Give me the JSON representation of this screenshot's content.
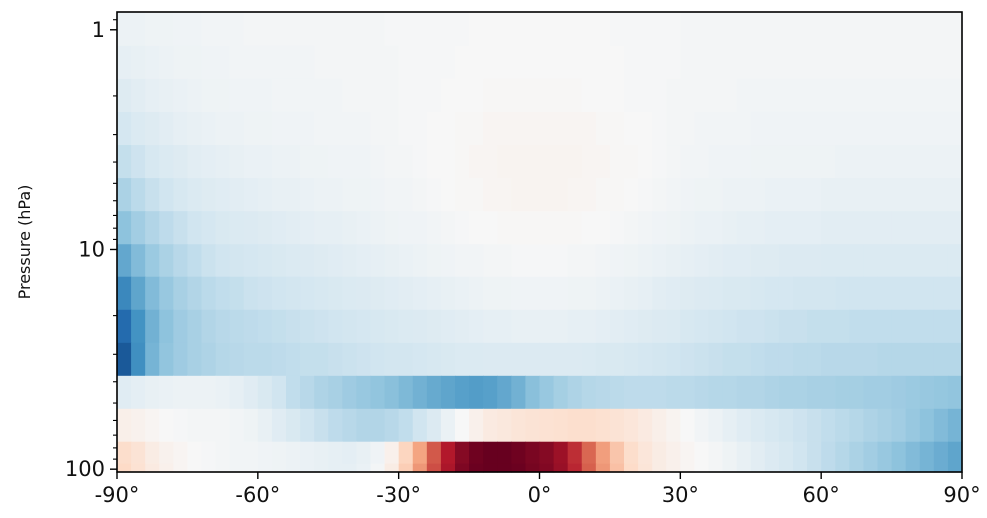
{
  "chart_data": {
    "type": "heatmap",
    "title": "",
    "xlabel": "",
    "ylabel": "Pressure (hPa)",
    "x_axis": {
      "min": -90,
      "max": 90,
      "ticks": [
        -90,
        -60,
        -30,
        0,
        30,
        60,
        90
      ],
      "tick_labels": [
        "-90°",
        "-60°",
        "-30°",
        "0°",
        "30°",
        "60°",
        "90°"
      ]
    },
    "y_axis": {
      "scale": "log",
      "inverted": true,
      "min": 0.83,
      "max": 103,
      "ticks": [
        1,
        10,
        100
      ],
      "tick_labels": [
        "1",
        "10",
        "100"
      ]
    },
    "colormap": "RdBu_r",
    "value_range": [
      -1,
      1
    ],
    "grid": false,
    "note_values": "Normalized anomaly values in [-1,1] read from the color scale",
    "latitudes": [
      -88.5,
      -85.5,
      -82.5,
      -79.5,
      -76.5,
      -73.5,
      -70.5,
      -67.5,
      -64.5,
      -61.5,
      -58.5,
      -55.5,
      -52.5,
      -49.5,
      -46.5,
      -43.5,
      -40.5,
      -37.5,
      -34.5,
      -31.5,
      -28.5,
      -25.5,
      -22.5,
      -19.5,
      -16.5,
      -13.5,
      -10.5,
      -7.5,
      -4.5,
      -1.5,
      1.5,
      4.5,
      7.5,
      10.5,
      13.5,
      16.5,
      19.5,
      22.5,
      25.5,
      28.5,
      31.5,
      34.5,
      37.5,
      40.5,
      43.5,
      46.5,
      49.5,
      52.5,
      55.5,
      58.5,
      61.5,
      64.5,
      67.5,
      70.5,
      73.5,
      76.5,
      79.5,
      82.5,
      85.5,
      88.5
    ],
    "pressure_levels": [
      1.0,
      1.4,
      2.0,
      2.8,
      4.0,
      5.6,
      8.0,
      11.2,
      15.8,
      22.4,
      31.6,
      44.7,
      63.1,
      89.1,
      100.0
    ],
    "values": [
      [
        -0.06,
        -0.06,
        -0.05,
        -0.05,
        -0.04,
        -0.04,
        -0.03,
        -0.03,
        -0.03,
        -0.02,
        -0.02,
        -0.02,
        -0.02,
        -0.02,
        -0.02,
        -0.02,
        -0.02,
        -0.02,
        -0.02,
        -0.01,
        -0.01,
        -0.01,
        -0.01,
        -0.01,
        -0.01,
        0.0,
        0.0,
        0.0,
        0.0,
        0.0,
        0.0,
        0.0,
        0.0,
        0.0,
        0.0,
        -0.01,
        -0.01,
        -0.01,
        -0.01,
        -0.01,
        -0.02,
        -0.02,
        -0.02,
        -0.02,
        -0.02,
        -0.02,
        -0.02,
        -0.02,
        -0.02,
        -0.02,
        -0.02,
        -0.02,
        -0.02,
        -0.02,
        -0.02,
        -0.02,
        -0.02,
        -0.02,
        -0.02,
        -0.02
      ],
      [
        -0.09,
        -0.08,
        -0.07,
        -0.06,
        -0.05,
        -0.05,
        -0.04,
        -0.04,
        -0.03,
        -0.03,
        -0.03,
        -0.03,
        -0.03,
        -0.03,
        -0.02,
        -0.02,
        -0.02,
        -0.02,
        -0.02,
        -0.02,
        -0.01,
        -0.01,
        -0.01,
        -0.01,
        0.0,
        0.0,
        0.0,
        0.0,
        0.0,
        0.0,
        0.0,
        0.0,
        0.0,
        0.0,
        0.0,
        0.0,
        -0.01,
        -0.01,
        -0.01,
        -0.01,
        -0.02,
        -0.02,
        -0.02,
        -0.02,
        -0.02,
        -0.02,
        -0.02,
        -0.02,
        -0.02,
        -0.02,
        -0.02,
        -0.02,
        -0.02,
        -0.02,
        -0.02,
        -0.02,
        -0.02,
        -0.02,
        -0.02,
        -0.02
      ],
      [
        -0.13,
        -0.11,
        -0.09,
        -0.08,
        -0.07,
        -0.06,
        -0.05,
        -0.05,
        -0.04,
        -0.04,
        -0.04,
        -0.03,
        -0.03,
        -0.03,
        -0.03,
        -0.03,
        -0.02,
        -0.02,
        -0.02,
        -0.02,
        -0.01,
        -0.01,
        -0.01,
        0.0,
        0.0,
        0.0,
        0.01,
        0.01,
        0.01,
        0.01,
        0.01,
        0.01,
        0.01,
        0.0,
        0.0,
        0.0,
        -0.01,
        -0.01,
        -0.01,
        -0.02,
        -0.02,
        -0.02,
        -0.02,
        -0.02,
        -0.03,
        -0.03,
        -0.03,
        -0.03,
        -0.03,
        -0.03,
        -0.03,
        -0.03,
        -0.03,
        -0.03,
        -0.03,
        -0.03,
        -0.03,
        -0.03,
        -0.03,
        -0.03
      ],
      [
        -0.18,
        -0.15,
        -0.13,
        -0.11,
        -0.09,
        -0.08,
        -0.07,
        -0.06,
        -0.06,
        -0.05,
        -0.05,
        -0.04,
        -0.04,
        -0.04,
        -0.03,
        -0.03,
        -0.03,
        -0.03,
        -0.02,
        -0.02,
        -0.01,
        -0.01,
        0.0,
        0.0,
        0.01,
        0.01,
        0.02,
        0.02,
        0.02,
        0.02,
        0.02,
        0.02,
        0.02,
        0.02,
        0.01,
        0.01,
        0.0,
        0.0,
        -0.01,
        -0.02,
        -0.02,
        -0.03,
        -0.03,
        -0.03,
        -0.03,
        -0.04,
        -0.04,
        -0.04,
        -0.04,
        -0.04,
        -0.04,
        -0.04,
        -0.04,
        -0.04,
        -0.04,
        -0.04,
        -0.04,
        -0.04,
        -0.04,
        -0.04
      ],
      [
        -0.24,
        -0.21,
        -0.17,
        -0.15,
        -0.13,
        -0.11,
        -0.1,
        -0.09,
        -0.08,
        -0.07,
        -0.07,
        -0.06,
        -0.06,
        -0.05,
        -0.05,
        -0.04,
        -0.04,
        -0.04,
        -0.03,
        -0.02,
        -0.02,
        -0.01,
        0.0,
        0.0,
        0.01,
        0.02,
        0.02,
        0.03,
        0.03,
        0.03,
        0.03,
        0.03,
        0.03,
        0.02,
        0.02,
        0.01,
        0.01,
        0.0,
        -0.01,
        -0.02,
        -0.03,
        -0.03,
        -0.04,
        -0.04,
        -0.04,
        -0.05,
        -0.05,
        -0.05,
        -0.05,
        -0.05,
        -0.05,
        -0.06,
        -0.06,
        -0.06,
        -0.06,
        -0.06,
        -0.06,
        -0.06,
        -0.06,
        -0.06
      ],
      [
        -0.32,
        -0.27,
        -0.23,
        -0.2,
        -0.17,
        -0.15,
        -0.13,
        -0.12,
        -0.11,
        -0.1,
        -0.09,
        -0.08,
        -0.08,
        -0.07,
        -0.06,
        -0.06,
        -0.05,
        -0.05,
        -0.04,
        -0.03,
        -0.03,
        -0.02,
        -0.01,
        0.0,
        0.01,
        0.01,
        0.02,
        0.02,
        0.03,
        0.03,
        0.03,
        0.03,
        0.02,
        0.02,
        0.01,
        0.01,
        0.0,
        -0.01,
        -0.02,
        -0.03,
        -0.04,
        -0.05,
        -0.05,
        -0.06,
        -0.06,
        -0.06,
        -0.07,
        -0.07,
        -0.07,
        -0.07,
        -0.08,
        -0.08,
        -0.08,
        -0.08,
        -0.08,
        -0.08,
        -0.08,
        -0.08,
        -0.08,
        -0.08
      ],
      [
        -0.41,
        -0.35,
        -0.3,
        -0.26,
        -0.23,
        -0.2,
        -0.18,
        -0.16,
        -0.15,
        -0.14,
        -0.13,
        -0.12,
        -0.11,
        -0.1,
        -0.09,
        -0.09,
        -0.08,
        -0.07,
        -0.06,
        -0.05,
        -0.04,
        -0.04,
        -0.03,
        -0.02,
        -0.01,
        0.0,
        0.0,
        0.01,
        0.01,
        0.01,
        0.01,
        0.01,
        0.01,
        0.0,
        0.0,
        -0.01,
        -0.02,
        -0.03,
        -0.04,
        -0.05,
        -0.06,
        -0.07,
        -0.07,
        -0.08,
        -0.09,
        -0.09,
        -0.1,
        -0.1,
        -0.1,
        -0.1,
        -0.11,
        -0.11,
        -0.11,
        -0.11,
        -0.11,
        -0.11,
        -0.11,
        -0.11,
        -0.11,
        -0.11
      ],
      [
        -0.52,
        -0.44,
        -0.37,
        -0.32,
        -0.28,
        -0.25,
        -0.22,
        -0.2,
        -0.19,
        -0.18,
        -0.17,
        -0.16,
        -0.15,
        -0.14,
        -0.13,
        -0.12,
        -0.11,
        -0.1,
        -0.09,
        -0.08,
        -0.07,
        -0.06,
        -0.05,
        -0.04,
        -0.03,
        -0.03,
        -0.02,
        -0.02,
        -0.01,
        -0.01,
        -0.01,
        -0.01,
        -0.02,
        -0.02,
        -0.03,
        -0.04,
        -0.05,
        -0.06,
        -0.07,
        -0.08,
        -0.09,
        -0.1,
        -0.11,
        -0.12,
        -0.12,
        -0.13,
        -0.13,
        -0.14,
        -0.14,
        -0.14,
        -0.15,
        -0.15,
        -0.15,
        -0.15,
        -0.15,
        -0.15,
        -0.15,
        -0.15,
        -0.15,
        -0.15
      ],
      [
        -0.65,
        -0.53,
        -0.44,
        -0.38,
        -0.33,
        -0.3,
        -0.27,
        -0.25,
        -0.24,
        -0.22,
        -0.21,
        -0.2,
        -0.19,
        -0.18,
        -0.17,
        -0.16,
        -0.15,
        -0.14,
        -0.13,
        -0.12,
        -0.11,
        -0.1,
        -0.09,
        -0.08,
        -0.07,
        -0.06,
        -0.05,
        -0.05,
        -0.04,
        -0.04,
        -0.04,
        -0.04,
        -0.05,
        -0.05,
        -0.06,
        -0.07,
        -0.08,
        -0.09,
        -0.11,
        -0.12,
        -0.13,
        -0.14,
        -0.15,
        -0.16,
        -0.16,
        -0.17,
        -0.18,
        -0.18,
        -0.19,
        -0.19,
        -0.19,
        -0.2,
        -0.2,
        -0.2,
        -0.2,
        -0.2,
        -0.2,
        -0.2,
        -0.2,
        -0.2
      ],
      [
        -0.78,
        -0.6,
        -0.48,
        -0.41,
        -0.36,
        -0.33,
        -0.3,
        -0.28,
        -0.27,
        -0.26,
        -0.25,
        -0.24,
        -0.23,
        -0.22,
        -0.21,
        -0.2,
        -0.19,
        -0.18,
        -0.17,
        -0.16,
        -0.15,
        -0.14,
        -0.13,
        -0.12,
        -0.11,
        -0.1,
        -0.09,
        -0.09,
        -0.08,
        -0.08,
        -0.08,
        -0.08,
        -0.09,
        -0.09,
        -0.1,
        -0.11,
        -0.12,
        -0.13,
        -0.14,
        -0.15,
        -0.17,
        -0.18,
        -0.19,
        -0.2,
        -0.21,
        -0.21,
        -0.22,
        -0.23,
        -0.23,
        -0.24,
        -0.24,
        -0.24,
        -0.25,
        -0.25,
        -0.25,
        -0.25,
        -0.25,
        -0.25,
        -0.25,
        -0.25
      ],
      [
        -0.85,
        -0.62,
        -0.47,
        -0.4,
        -0.36,
        -0.33,
        -0.31,
        -0.29,
        -0.28,
        -0.27,
        -0.27,
        -0.26,
        -0.25,
        -0.24,
        -0.24,
        -0.23,
        -0.22,
        -0.21,
        -0.2,
        -0.19,
        -0.19,
        -0.18,
        -0.17,
        -0.16,
        -0.15,
        -0.15,
        -0.14,
        -0.14,
        -0.14,
        -0.14,
        -0.14,
        -0.14,
        -0.14,
        -0.15,
        -0.16,
        -0.16,
        -0.17,
        -0.18,
        -0.19,
        -0.2,
        -0.21,
        -0.22,
        -0.23,
        -0.24,
        -0.24,
        -0.25,
        -0.26,
        -0.26,
        -0.27,
        -0.27,
        -0.28,
        -0.28,
        -0.28,
        -0.28,
        -0.29,
        -0.29,
        -0.29,
        -0.29,
        -0.29,
        -0.29
      ],
      [
        -0.12,
        -0.1,
        -0.08,
        -0.07,
        -0.06,
        -0.06,
        -0.06,
        -0.07,
        -0.09,
        -0.12,
        -0.16,
        -0.2,
        -0.25,
        -0.28,
        -0.31,
        -0.33,
        -0.36,
        -0.38,
        -0.4,
        -0.42,
        -0.45,
        -0.48,
        -0.51,
        -0.53,
        -0.55,
        -0.56,
        -0.55,
        -0.52,
        -0.48,
        -0.42,
        -0.38,
        -0.34,
        -0.31,
        -0.29,
        -0.28,
        -0.27,
        -0.26,
        -0.26,
        -0.26,
        -0.27,
        -0.27,
        -0.28,
        -0.29,
        -0.29,
        -0.3,
        -0.3,
        -0.31,
        -0.32,
        -0.32,
        -0.33,
        -0.33,
        -0.34,
        -0.34,
        -0.35,
        -0.35,
        -0.36,
        -0.37,
        -0.38,
        -0.39,
        -0.4
      ],
      [
        0.06,
        0.04,
        0.02,
        0.0,
        -0.01,
        -0.02,
        -0.02,
        -0.02,
        -0.03,
        -0.05,
        -0.08,
        -0.12,
        -0.16,
        -0.2,
        -0.23,
        -0.26,
        -0.28,
        -0.3,
        -0.3,
        -0.28,
        -0.25,
        -0.2,
        -0.14,
        -0.07,
        0.0,
        0.05,
        0.09,
        0.11,
        0.13,
        0.14,
        0.15,
        0.16,
        0.17,
        0.17,
        0.16,
        0.14,
        0.12,
        0.09,
        0.06,
        0.03,
        0.0,
        -0.03,
        -0.06,
        -0.09,
        -0.12,
        -0.15,
        -0.17,
        -0.19,
        -0.21,
        -0.23,
        -0.25,
        -0.27,
        -0.29,
        -0.31,
        -0.33,
        -0.35,
        -0.38,
        -0.41,
        -0.44,
        -0.47
      ],
      [
        0.18,
        0.14,
        0.08,
        0.04,
        0.02,
        0.0,
        -0.01,
        -0.02,
        -0.03,
        -0.03,
        -0.04,
        -0.05,
        -0.06,
        -0.07,
        -0.08,
        -0.09,
        -0.1,
        -0.08,
        -0.04,
        0.05,
        0.22,
        0.4,
        0.62,
        0.8,
        0.92,
        0.98,
        1.0,
        1.0,
        0.98,
        0.95,
        0.92,
        0.86,
        0.74,
        0.58,
        0.42,
        0.28,
        0.18,
        0.12,
        0.08,
        0.05,
        0.02,
        0.0,
        -0.02,
        -0.05,
        -0.08,
        -0.11,
        -0.14,
        -0.17,
        -0.2,
        -0.23,
        -0.26,
        -0.29,
        -0.32,
        -0.35,
        -0.38,
        -0.41,
        -0.44,
        -0.47,
        -0.5,
        -0.53
      ],
      [
        0.2,
        0.15,
        0.09,
        0.05,
        0.02,
        0.0,
        -0.01,
        -0.02,
        -0.03,
        -0.03,
        -0.04,
        -0.05,
        -0.06,
        -0.07,
        -0.08,
        -0.09,
        -0.09,
        -0.07,
        -0.02,
        0.08,
        0.25,
        0.44,
        0.65,
        0.82,
        0.94,
        0.99,
        1.0,
        1.0,
        0.99,
        0.96,
        0.93,
        0.87,
        0.76,
        0.6,
        0.44,
        0.3,
        0.19,
        0.13,
        0.08,
        0.05,
        0.02,
        0.0,
        -0.02,
        -0.05,
        -0.08,
        -0.11,
        -0.14,
        -0.17,
        -0.2,
        -0.23,
        -0.26,
        -0.29,
        -0.32,
        -0.35,
        -0.38,
        -0.41,
        -0.44,
        -0.47,
        -0.5,
        -0.53
      ]
    ]
  }
}
